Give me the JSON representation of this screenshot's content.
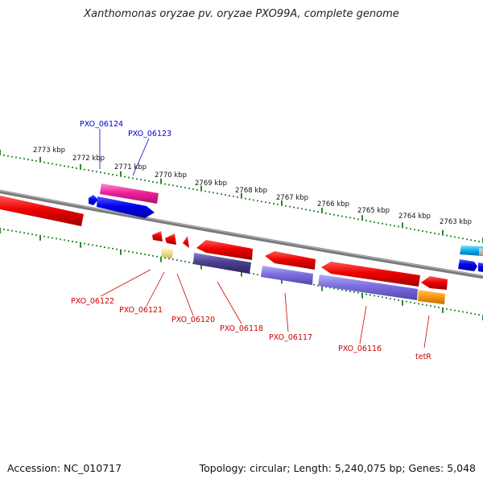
{
  "title": "Xanthomonas oryzae pv. oryzae PXO99A, complete genome",
  "footer": {
    "accession": "Accession: NC_010717",
    "summary": "Topology: circular; Length: 5,240,075 bp; Genes: 5,048"
  },
  "colors": {
    "backbone": "#808080",
    "tick": "#1a7a1a",
    "plus_label": "#0000cc",
    "minus_label": "#cc0000"
  },
  "ruler_labels": [
    "2773 kbp",
    "2772 kbp",
    "2771 kbp",
    "2770 kbp",
    "2769 kbp",
    "2768 kbp",
    "2767 kbp",
    "2766 kbp",
    "2765 kbp",
    "2764 kbp",
    "2763 kbp"
  ],
  "labels_plus": [
    "PXO_06124",
    "PXO_06123"
  ],
  "labels_minus": [
    "PXO_06122",
    "PXO_06121",
    "PXO_06120",
    "PXO_06118",
    "PXO_06117",
    "PXO_06116",
    "tetR"
  ]
}
